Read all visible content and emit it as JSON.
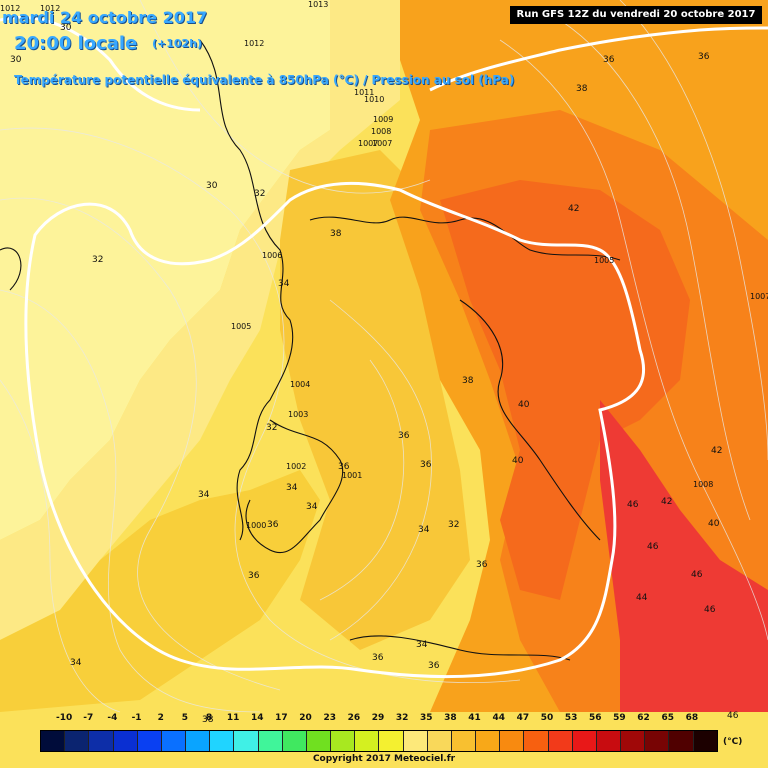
{
  "header": {
    "date": "mardi 24 octobre 2017",
    "time": "20:00 locale",
    "lead": "(+102h)",
    "subtitle": "Température potentielle équivalente à 850hPa (°C) / Pression au sol (hPa)"
  },
  "run_label": "Run GFS 12Z du vendredi 20 octobre 2017",
  "copyright": "Copyright 2017 Meteociel.fr",
  "legend": {
    "unit": "(°C)",
    "ticks": [
      "-10",
      "-7",
      "-4",
      "-1",
      "2",
      "5",
      "8",
      "11",
      "14",
      "17",
      "20",
      "23",
      "26",
      "29",
      "32",
      "35",
      "38",
      "41",
      "44",
      "47",
      "50",
      "53",
      "56",
      "59",
      "62",
      "65",
      "68"
    ],
    "colors": [
      "#000c3a",
      "#0b2470",
      "#0d2ea8",
      "#0a2fd2",
      "#0a40f2",
      "#0a70ff",
      "#0aa4ff",
      "#20d4ff",
      "#40f0e6",
      "#40f59a",
      "#40e860",
      "#70e020",
      "#a8e820",
      "#d4f020",
      "#f4f030",
      "#fde97a",
      "#f9d85a",
      "#f8c030",
      "#f8a818",
      "#f88a10",
      "#f76010",
      "#f23a1a",
      "#e81818",
      "#c80c10",
      "#a00808",
      "#780404",
      "#500000",
      "#1c0000"
    ]
  },
  "colors": {
    "header_text": "#38a8ff",
    "isotherm_highlight": "#ffffff"
  },
  "pressure_labels": [
    "1012",
    "1012",
    "1013",
    "1012",
    "1011",
    "1010",
    "1009",
    "1008",
    "1007",
    "1007",
    "1006",
    "1005",
    "1005",
    "1004",
    "1003",
    "1002",
    "1001",
    "1000",
    "1008",
    "1007"
  ],
  "temperature_labels": [
    "30",
    "30",
    "30",
    "32",
    "32",
    "32",
    "34",
    "36",
    "38",
    "38",
    "36",
    "42",
    "38",
    "36",
    "34",
    "32",
    "34",
    "40",
    "40",
    "42",
    "40",
    "42",
    "46",
    "46",
    "46",
    "44",
    "46",
    "46",
    "36",
    "34",
    "36",
    "34",
    "36",
    "36",
    "36",
    "34",
    "36",
    "34",
    "36",
    "38"
  ]
}
